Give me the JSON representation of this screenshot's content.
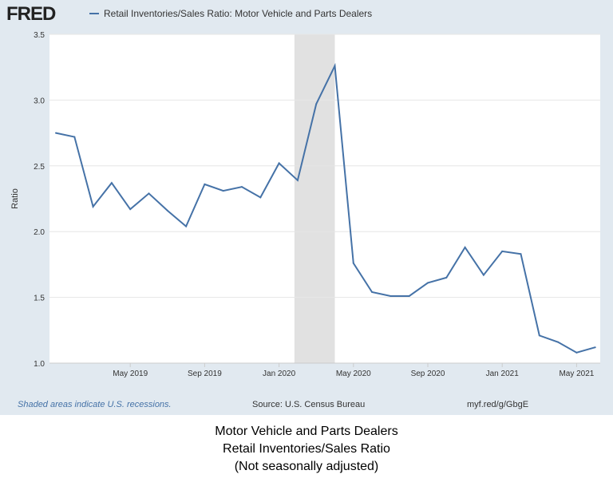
{
  "header": {
    "logo": "FRED",
    "legend": "Retail Inventories/Sales Ratio: Motor Vehicle and Parts Dealers"
  },
  "footer": {
    "recession_note": "Shaded areas indicate U.S. recessions.",
    "source": "Source: U.S. Census Bureau",
    "link": "myf.red/g/GbgE"
  },
  "caption": [
    "Motor Vehicle and Parts Dealers",
    "Retail Inventories/Sales Ratio",
    "(Not seasonally adjusted)"
  ],
  "colors": {
    "line": "#4572a7",
    "recession": "#e1e1e1",
    "background": "#e1e9f0"
  },
  "chart_data": {
    "type": "line",
    "title": "Retail Inventories/Sales Ratio: Motor Vehicle and Parts Dealers",
    "ylabel": "Ratio",
    "xlabel": "",
    "ylim": [
      1.0,
      3.5
    ],
    "yticks": [
      "1.0",
      "1.5",
      "2.0",
      "2.5",
      "3.0",
      "3.5"
    ],
    "xticks": [
      {
        "label": "May 2019",
        "index": 4
      },
      {
        "label": "Sep 2019",
        "index": 8
      },
      {
        "label": "Jan 2020",
        "index": 12
      },
      {
        "label": "May 2020",
        "index": 16
      },
      {
        "label": "Sep 2020",
        "index": 20
      },
      {
        "label": "Jan 2021",
        "index": 24
      },
      {
        "label": "May 2021",
        "index": 28
      }
    ],
    "x": [
      "2019-01",
      "2019-02",
      "2019-03",
      "2019-04",
      "2019-05",
      "2019-06",
      "2019-07",
      "2019-08",
      "2019-09",
      "2019-10",
      "2019-11",
      "2019-12",
      "2020-01",
      "2020-02",
      "2020-03",
      "2020-04",
      "2020-05",
      "2020-06",
      "2020-07",
      "2020-08",
      "2020-09",
      "2020-10",
      "2020-11",
      "2020-12",
      "2021-01",
      "2021-02",
      "2021-03",
      "2021-04",
      "2021-05",
      "2021-06"
    ],
    "values": [
      2.75,
      2.72,
      2.19,
      2.37,
      2.17,
      2.29,
      2.16,
      2.04,
      2.36,
      2.31,
      2.34,
      2.26,
      2.52,
      2.39,
      2.97,
      3.26,
      1.76,
      1.54,
      1.51,
      1.51,
      1.61,
      1.65,
      1.88,
      1.67,
      1.85,
      1.83,
      1.21,
      1.16,
      1.08,
      1.12
    ],
    "recession": {
      "start_index": 13,
      "end_index": 15
    },
    "grid": true,
    "legend": "top-left"
  }
}
